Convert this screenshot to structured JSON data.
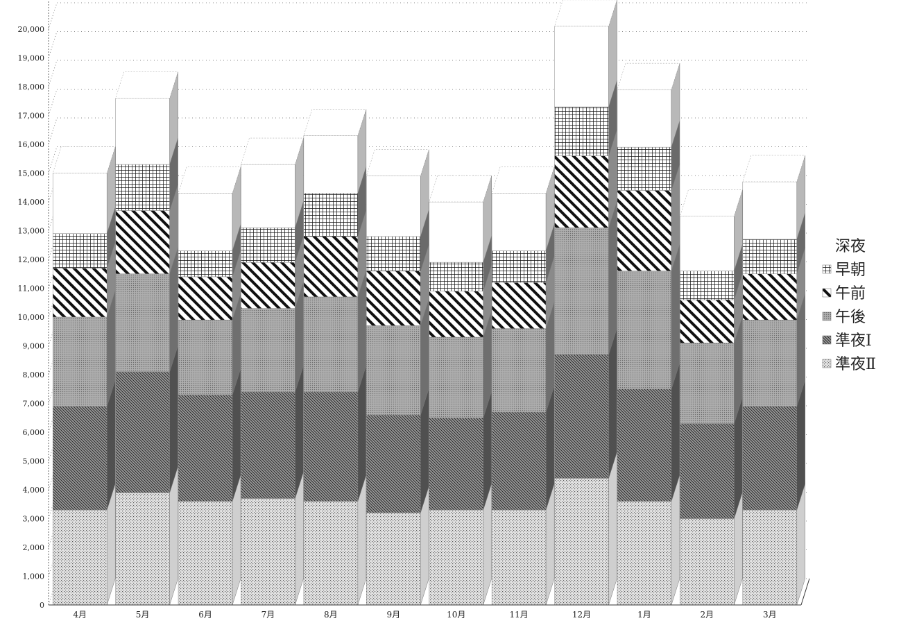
{
  "chart_data": {
    "type": "bar",
    "stacked": true,
    "three_d": true,
    "title": "",
    "xlabel": "",
    "ylabel": "",
    "categories": [
      "4月",
      "5月",
      "6月",
      "7月",
      "8月",
      "9月",
      "10月",
      "11月",
      "12月",
      "1月",
      "2月",
      "3月"
    ],
    "series": [
      {
        "name": "準夜Ⅱ",
        "pattern": "dots",
        "values": [
          3300,
          3900,
          3600,
          3700,
          3600,
          3200,
          3300,
          3300,
          4400,
          3600,
          3000,
          3300
        ]
      },
      {
        "name": "準夜Ⅰ",
        "pattern": "dense-hatch",
        "values": [
          3600,
          4200,
          3700,
          3700,
          3800,
          3400,
          3200,
          3400,
          4300,
          3900,
          3300,
          3600
        ]
      },
      {
        "name": "午後",
        "pattern": "gray",
        "values": [
          3100,
          3400,
          2600,
          2900,
          3300,
          3100,
          2800,
          2900,
          4400,
          4100,
          2800,
          3000
        ]
      },
      {
        "name": "午前",
        "pattern": "diagonal",
        "values": [
          1700,
          2200,
          1500,
          1600,
          2100,
          1900,
          1600,
          1600,
          2500,
          2800,
          1500,
          1600
        ]
      },
      {
        "name": "早朝",
        "pattern": "grid",
        "values": [
          1200,
          1600,
          900,
          1200,
          1500,
          1200,
          1000,
          1100,
          1700,
          1500,
          1000,
          1200
        ]
      },
      {
        "name": "深夜",
        "pattern": "white",
        "values": [
          2100,
          2300,
          2000,
          2200,
          2000,
          2100,
          2100,
          2000,
          2800,
          2000,
          1900,
          2000
        ]
      }
    ],
    "ylim": [
      0,
      21000
    ],
    "yticks": [
      0,
      1000,
      2000,
      3000,
      4000,
      5000,
      6000,
      7000,
      8000,
      9000,
      10000,
      11000,
      12000,
      13000,
      14000,
      15000,
      16000,
      17000,
      18000,
      19000,
      20000
    ],
    "ytick_labels": [
      "0",
      "1,000",
      "2,000",
      "3,000",
      "4,000",
      "5,000",
      "6,000",
      "7,000",
      "8,000",
      "9,000",
      "10,000",
      "11,000",
      "12,000",
      "13,000",
      "14,000",
      "15,000",
      "16,000",
      "17,000",
      "18,000",
      "19,000",
      "20,000"
    ],
    "grid": true,
    "legend_position": "right",
    "legend_order": [
      "深夜",
      "早朝",
      "午前",
      "午後",
      "準夜Ⅰ",
      "準夜Ⅱ"
    ]
  }
}
